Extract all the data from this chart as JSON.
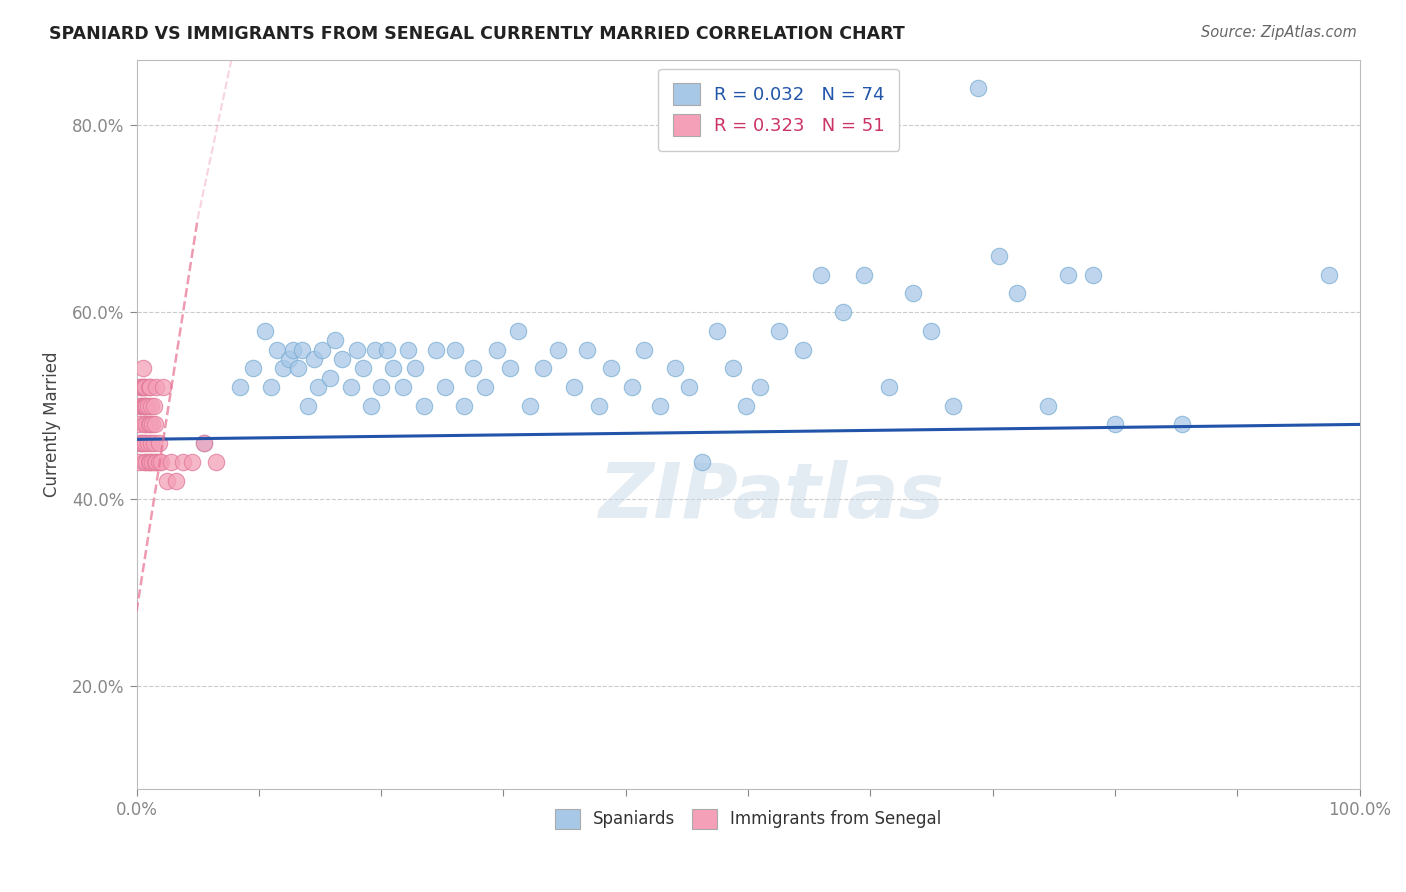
{
  "title": "SPANIARD VS IMMIGRANTS FROM SENEGAL CURRENTLY MARRIED CORRELATION CHART",
  "source": "Source: ZipAtlas.com",
  "ylabel": "Currently Married",
  "r_blue": 0.032,
  "n_blue": 74,
  "r_pink": 0.323,
  "n_pink": 51,
  "xlim": [
    0.0,
    1.0
  ],
  "ylim": [
    0.09,
    0.87
  ],
  "yticks": [
    0.2,
    0.4,
    0.6,
    0.8
  ],
  "ytick_labels": [
    "20.0%",
    "40.0%",
    "60.0%",
    "80.0%"
  ],
  "xtick_labels": [
    "0.0%",
    "",
    "",
    "",
    "",
    "",
    "",
    "",
    "",
    "",
    "100.0%"
  ],
  "legend_labels": [
    "Spaniards",
    "Immigrants from Senegal"
  ],
  "blue_color": "#a8c8e8",
  "blue_edge_color": "#7aadd4",
  "pink_color": "#f4a0b8",
  "pink_edge_color": "#e07898",
  "blue_line_color": "#2255aa",
  "pink_line_color": "#e87090",
  "watermark": "ZIPatlas",
  "blue_trend_start_y": 0.464,
  "blue_trend_end_y": 0.48,
  "pink_trend_x0": 0.0,
  "pink_trend_y0": 0.3,
  "pink_trend_x1": 0.025,
  "pink_trend_y1": 0.52,
  "blue_x": [
    0.055,
    0.085,
    0.095,
    0.105,
    0.11,
    0.115,
    0.12,
    0.125,
    0.128,
    0.132,
    0.135,
    0.14,
    0.145,
    0.148,
    0.152,
    0.158,
    0.162,
    0.168,
    0.175,
    0.18,
    0.185,
    0.192,
    0.195,
    0.2,
    0.205,
    0.21,
    0.218,
    0.222,
    0.228,
    0.235,
    0.245,
    0.252,
    0.26,
    0.268,
    0.275,
    0.285,
    0.295,
    0.305,
    0.312,
    0.322,
    0.332,
    0.345,
    0.358,
    0.368,
    0.378,
    0.388,
    0.405,
    0.415,
    0.428,
    0.44,
    0.452,
    0.462,
    0.475,
    0.488,
    0.498,
    0.51,
    0.525,
    0.545,
    0.56,
    0.578,
    0.595,
    0.615,
    0.635,
    0.65,
    0.668,
    0.688,
    0.705,
    0.72,
    0.745,
    0.762,
    0.782,
    0.8,
    0.855,
    0.975
  ],
  "blue_y": [
    0.46,
    0.52,
    0.54,
    0.58,
    0.52,
    0.56,
    0.54,
    0.55,
    0.56,
    0.54,
    0.56,
    0.5,
    0.55,
    0.52,
    0.56,
    0.53,
    0.57,
    0.55,
    0.52,
    0.56,
    0.54,
    0.5,
    0.56,
    0.52,
    0.56,
    0.54,
    0.52,
    0.56,
    0.54,
    0.5,
    0.56,
    0.52,
    0.56,
    0.5,
    0.54,
    0.52,
    0.56,
    0.54,
    0.58,
    0.5,
    0.54,
    0.56,
    0.52,
    0.56,
    0.5,
    0.54,
    0.52,
    0.56,
    0.5,
    0.54,
    0.52,
    0.44,
    0.58,
    0.54,
    0.5,
    0.52,
    0.58,
    0.56,
    0.64,
    0.6,
    0.64,
    0.52,
    0.62,
    0.58,
    0.5,
    0.84,
    0.66,
    0.62,
    0.5,
    0.64,
    0.64,
    0.48,
    0.48,
    0.64
  ],
  "pink_x": [
    0.002,
    0.002,
    0.003,
    0.003,
    0.003,
    0.004,
    0.004,
    0.004,
    0.005,
    0.005,
    0.005,
    0.005,
    0.006,
    0.006,
    0.006,
    0.006,
    0.007,
    0.007,
    0.007,
    0.008,
    0.008,
    0.008,
    0.009,
    0.009,
    0.01,
    0.01,
    0.01,
    0.011,
    0.011,
    0.011,
    0.012,
    0.012,
    0.013,
    0.013,
    0.014,
    0.014,
    0.015,
    0.015,
    0.016,
    0.016,
    0.018,
    0.018,
    0.02,
    0.022,
    0.025,
    0.028,
    0.032,
    0.038,
    0.045,
    0.055,
    0.065
  ],
  "pink_y": [
    0.44,
    0.48,
    0.46,
    0.5,
    0.52,
    0.46,
    0.5,
    0.52,
    0.46,
    0.5,
    0.52,
    0.54,
    0.44,
    0.48,
    0.5,
    0.52,
    0.46,
    0.5,
    0.52,
    0.44,
    0.48,
    0.5,
    0.46,
    0.5,
    0.44,
    0.48,
    0.52,
    0.44,
    0.48,
    0.52,
    0.46,
    0.5,
    0.44,
    0.48,
    0.46,
    0.5,
    0.44,
    0.48,
    0.44,
    0.52,
    0.44,
    0.46,
    0.44,
    0.52,
    0.42,
    0.44,
    0.42,
    0.44,
    0.44,
    0.46,
    0.44
  ]
}
